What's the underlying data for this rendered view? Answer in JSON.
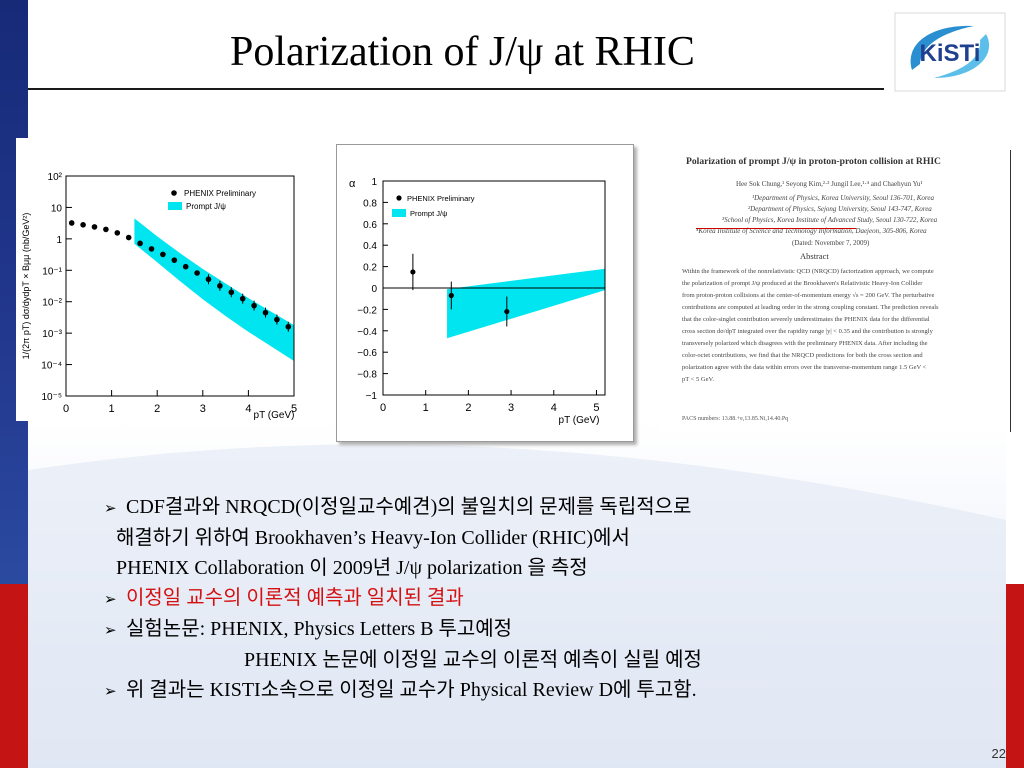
{
  "slide": {
    "title": "Polarization of J/ψ at RHIC",
    "logo_text": "KiSTi",
    "page_number": "22"
  },
  "bullets": [
    {
      "marker": "➢",
      "text": "CDF결과와 NRQCD(이정일교수예견)의 불일치의 문제를 독립적으로",
      "color": "#000000"
    },
    {
      "marker": "",
      "text": "해결하기 위하여  Brookhaven’s Heavy-Ion Collider (RHIC)에서",
      "color": "#000000"
    },
    {
      "marker": "",
      "text": "PHENIX Collaboration 이 2009년 J/ψ polarization 을 측정",
      "color": "#000000"
    },
    {
      "marker": "➢",
      "text": "이정일 교수의 이론적 예측과 일치된 결과",
      "color": "#d41010"
    },
    {
      "marker": "➢",
      "text": "실험논문: PHENIX, Physics Letters B 투고예정",
      "color": "#000000"
    },
    {
      "marker": "",
      "text": "PHENIX 논문에 이정일 교수의 이론적 예측이 실릴 예정",
      "color": "#000000"
    },
    {
      "marker": "➢",
      "text": "위 결과는 KISTI소속으로 이정일 교수가 Physical Review D에 투고함.",
      "color": "#000000"
    }
  ],
  "paper": {
    "title": "Polarization of prompt J/ψ in proton-proton collision at RHIC",
    "authors": "Hee Sok Chung,¹ Seyong Kim,²·³ Jungil Lee,¹·⁴ and Chaehyun Yu¹",
    "affil1": "¹Department of Physics, Korea University, Seoul 136-701, Korea",
    "affil2": "²Department of Physics, Sejong University, Seoul 143-747, Korea",
    "affil3": "³School of Physics, Korea Institute of Advanced Study, Seoul 130-722, Korea",
    "affil4": "⁴Korea Institute of Science and Technology Information, Daejeon, 305-806, Korea",
    "dated": "(Dated: November 7, 2009)",
    "abstract_heading": "Abstract",
    "abstract_lines": [
      "Within the framework of the nonrelativistic QCD (NRQCD) factorization approach, we compute",
      "the polarization of prompt J/ψ produced at the Brookhaven's Relativistic Heavy-Ion Collider",
      "from proton-proton collisions at the center-of-momentum energy √s = 200 GeV. The perturbative",
      "contributions are computed at leading order in the strong coupling constant. The prediction reveals",
      "that the color-singlet contribution severely underestimates the PHENIX data for the differential",
      "cross section dσ/dpT integrated over the rapidity range |y| < 0.35 and the contribution is strongly",
      "transversely polarized which disagrees with the preliminary PHENIX data. After including the",
      "color-octet contributions, we find that the NRQCD predictions for both the cross section and",
      "polarization agree with the data within errors over the transverse-momentum range 1.5 GeV <",
      "pT < 5 GeV."
    ],
    "pacs": "PACS numbers: 13.88.+e,13.85.Ni,14.40.Pq"
  },
  "chart_data": [
    {
      "type": "scatter",
      "title": "",
      "xlabel": "pT (GeV)",
      "ylabel": "1/(2π pT) dσ/dydpT × Bμμ (nb/GeV²)",
      "yscale": "log",
      "xlim": [
        0,
        5
      ],
      "ylim": [
        1e-05,
        100
      ],
      "x_ticks": [
        "0",
        "1",
        "2",
        "3",
        "4",
        "5"
      ],
      "y_ticks": [
        "10⁻⁵",
        "10⁻⁴",
        "10⁻³",
        "10⁻²",
        "10⁻¹",
        "1",
        "10",
        "10²"
      ],
      "legend": [
        "PHENIX Preliminary",
        "Prompt J/ψ"
      ],
      "legend_position": "top-right",
      "band_color": "#00e5ef",
      "series": [
        {
          "name": "PHENIX Preliminary",
          "x": [
            0.125,
            0.375,
            0.625,
            0.875,
            1.125,
            1.375,
            1.625,
            1.875,
            2.125,
            2.375,
            2.625,
            2.875,
            3.125,
            3.375,
            3.625,
            3.875,
            4.125,
            4.375,
            4.625,
            4.875
          ],
          "y": [
            3.2,
            2.8,
            2.4,
            2.0,
            1.55,
            1.1,
            0.72,
            0.48,
            0.32,
            0.21,
            0.13,
            0.082,
            0.052,
            0.032,
            0.02,
            0.0125,
            0.0075,
            0.0045,
            0.0027,
            0.0016
          ]
        },
        {
          "name": "Prompt J/ψ",
          "x": [
            1.5,
            2,
            2.5,
            3,
            3.5,
            4,
            4.5,
            5
          ],
          "y_low": [
            0.7,
            0.18,
            0.045,
            0.012,
            0.0035,
            0.0011,
            0.00038,
            0.00013
          ],
          "y_high": [
            4.5,
            1.2,
            0.35,
            0.11,
            0.038,
            0.013,
            0.0048,
            0.0018
          ]
        }
      ]
    },
    {
      "type": "scatter",
      "title": "",
      "xlabel": "pT (GeV)",
      "ylabel": "α",
      "xlim": [
        0,
        5.2
      ],
      "ylim": [
        -1,
        1
      ],
      "x_ticks": [
        "0",
        "1",
        "2",
        "3",
        "4",
        "5"
      ],
      "y_ticks": [
        "−1",
        "−0.8",
        "−0.6",
        "−0.4",
        "−0.2",
        "0",
        "0.2",
        "0.4",
        "0.6",
        "0.8",
        "1"
      ],
      "legend": [
        "PHENIX Preliminary",
        "Prompt J/ψ"
      ],
      "legend_position": "top-left",
      "band_color": "#00e5ef",
      "series": [
        {
          "name": "PHENIX Preliminary",
          "x": [
            0.7,
            1.6,
            2.9
          ],
          "y": [
            0.15,
            -0.07,
            -0.22
          ],
          "err": [
            0.17,
            0.13,
            0.14
          ]
        },
        {
          "name": "Prompt J/ψ",
          "x": [
            1.5,
            5.2
          ],
          "y_low": [
            -0.47,
            -0.02
          ],
          "y_high": [
            -0.01,
            0.18
          ]
        }
      ]
    }
  ]
}
